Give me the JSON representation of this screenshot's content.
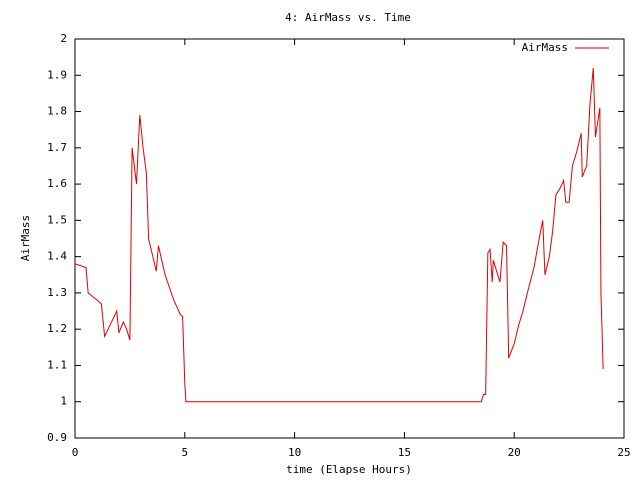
{
  "chart_data": {
    "type": "line",
    "title": "4: AirMass vs. Time",
    "x_label": "time (Elapse Hours)",
    "y_label": "AirMass",
    "x": [
      0,
      0.5,
      0.6,
      1.2,
      1.35,
      1.9,
      2.0,
      2.2,
      2.35,
      2.5,
      2.6,
      2.8,
      2.95,
      3.1,
      3.25,
      3.35,
      3.7,
      3.8,
      4.1,
      4.5,
      4.8,
      4.9,
      5.0,
      5.05,
      18.5,
      18.6,
      18.7,
      18.8,
      18.9,
      19.0,
      19.05,
      19.2,
      19.35,
      19.5,
      19.65,
      19.75,
      20.0,
      20.2,
      20.4,
      20.6,
      20.9,
      21.2,
      21.3,
      21.4,
      21.6,
      21.75,
      21.9,
      22.1,
      22.25,
      22.35,
      22.5,
      22.65,
      22.85,
      23.05,
      23.1,
      23.3,
      23.45,
      23.6,
      23.7,
      23.9,
      23.95,
      24.05
    ],
    "series": [
      {
        "name": "AirMass",
        "color": "#e00000",
        "values": [
          1.38,
          1.37,
          1.3,
          1.27,
          1.18,
          1.25,
          1.19,
          1.22,
          1.2,
          1.17,
          1.7,
          1.6,
          1.79,
          1.7,
          1.63,
          1.45,
          1.36,
          1.43,
          1.35,
          1.28,
          1.24,
          1.235,
          1.05,
          1.0,
          1.0,
          1.02,
          1.02,
          1.41,
          1.42,
          1.33,
          1.39,
          1.36,
          1.33,
          1.44,
          1.43,
          1.12,
          1.16,
          1.21,
          1.25,
          1.3,
          1.37,
          1.47,
          1.5,
          1.35,
          1.4,
          1.47,
          1.57,
          1.59,
          1.61,
          1.55,
          1.55,
          1.65,
          1.69,
          1.74,
          1.62,
          1.65,
          1.82,
          1.92,
          1.73,
          1.81,
          1.3,
          1.09
        ]
      }
    ],
    "xlim": [
      0,
      25
    ],
    "xticks": [
      0,
      5,
      10,
      15,
      20,
      25
    ],
    "ylim": [
      0.9,
      2
    ],
    "yticks": [
      0.9,
      1,
      1.1,
      1.2,
      1.3,
      1.4,
      1.5,
      1.6,
      1.7,
      1.8,
      1.9,
      2
    ],
    "legend": "top-right"
  }
}
